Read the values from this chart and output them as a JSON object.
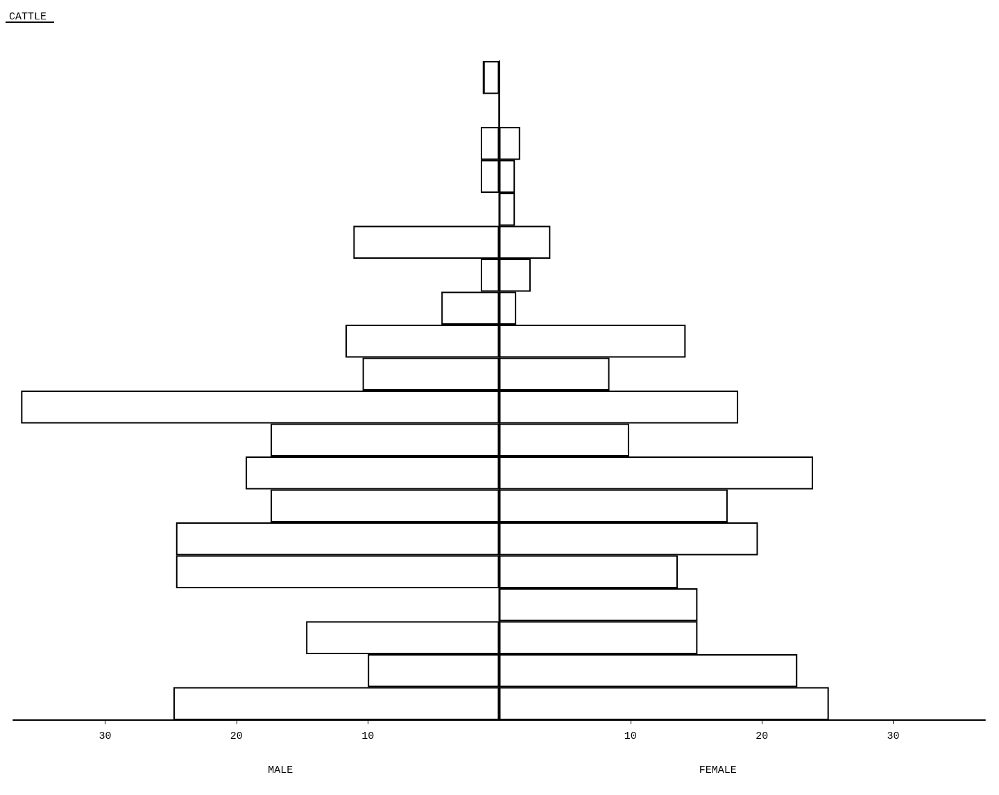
{
  "chart_data": {
    "type": "bar",
    "orientation": "horizontal",
    "title": "CATTLE",
    "categories": [
      null,
      null,
      null,
      null,
      null,
      null,
      null,
      null,
      null,
      null,
      null,
      null,
      null,
      null,
      null,
      null,
      null,
      null,
      null,
      null
    ],
    "series": [
      {
        "color": "#000000",
        "values": [
          -1.2,
          0,
          -1.4,
          -1.4,
          0,
          -11.1,
          -1.4,
          -4.4,
          -11.7,
          -10.4,
          -36.4,
          -17.4,
          -19.3,
          -17.4,
          -24.6,
          -24.6,
          0,
          -14.7,
          -10.0,
          -24.8
        ]
      },
      {
        "color": "#000000",
        "values": [
          0,
          0,
          1.6,
          1.2,
          1.2,
          3.9,
          2.4,
          1.3,
          14.2,
          8.4,
          18.2,
          9.9,
          23.9,
          17.4,
          19.7,
          13.6,
          15.1,
          15.1,
          22.7,
          25.1
        ]
      }
    ],
    "xlim": [
      -37,
      37
    ],
    "xticks": [
      {
        "value": -30,
        "label": "30"
      },
      {
        "value": -20,
        "label": "20"
      },
      {
        "value": -10,
        "label": "10"
      },
      {
        "value": 10,
        "label": "10"
      },
      {
        "value": 20,
        "label": "20"
      },
      {
        "value": 30,
        "label": "30"
      }
    ],
    "annotations": [
      "MALE",
      "FEMALE"
    ],
    "stacked": true,
    "grid": false
  }
}
